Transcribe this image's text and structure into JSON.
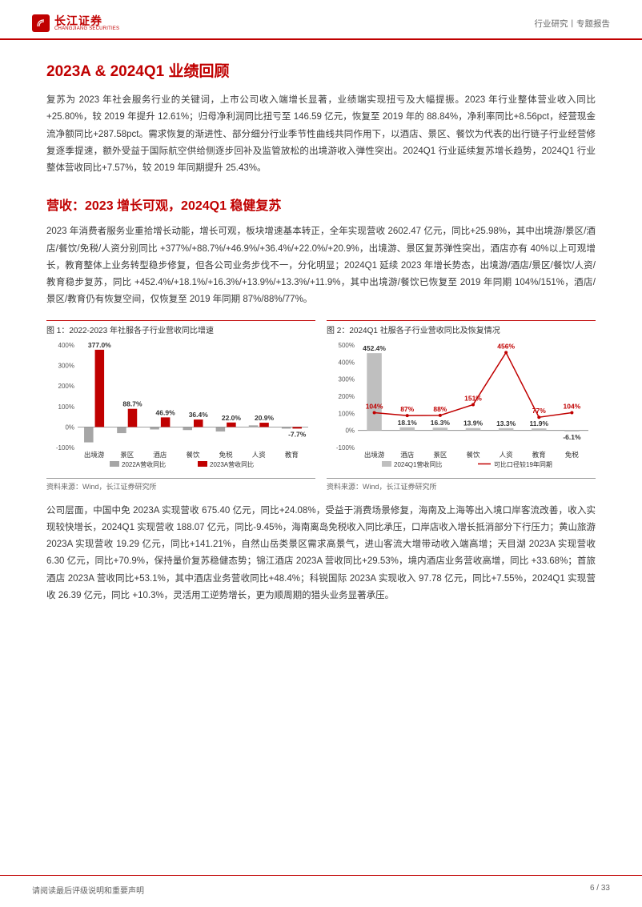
{
  "header": {
    "logo_cn": "长江证券",
    "logo_en": "CHANGJIANG SECURITIES",
    "right": "行业研究丨专题报告"
  },
  "section1_title": "2023A & 2024Q1 业绩回顾",
  "para1": "复苏为 2023 年社会服务行业的关键词，上市公司收入端增长显著，业绩端实现扭亏及大幅提振。2023 年行业整体营业收入同比+25.80%，较 2019 年提升 12.61%；归母净利润同比扭亏至 146.59 亿元，恢复至 2019 年的 88.84%，净利率同比+8.56pct，经营现金流净额同比+287.58pct。需求恢复的渐进性、部分细分行业季节性曲线共同作用下，以酒店、景区、餐饮为代表的出行链子行业经营修复逐季提速，额外受益于国际航空供给侧逐步回补及监管放松的出境游收入弹性突出。2024Q1 行业延续复苏增长趋势，2024Q1 行业整体营收同比+7.57%，较 2019 年同期提升 25.43%。",
  "section2_title": "营收：2023 增长可观，2024Q1 稳健复苏",
  "para2": "2023 年消费者服务业重拾增长动能，增长可观，板块增速基本转正，全年实现营收 2602.47 亿元，同比+25.98%，其中出境游/景区/酒店/餐饮/免税/人资分别同比 +377%/+88.7%/+46.9%/+36.4%/+22.0%/+20.9%，出境游、景区复苏弹性突出，酒店亦有 40%以上可观增长，教育整体上业务转型稳步修复，但各公司业务步伐不一，分化明显；2024Q1 延续 2023 年增长势态，出境游/酒店/景区/餐饮/人资/教育稳步复苏，同比 +452.4%/+18.1%/+16.3%/+13.9%/+13.3%/+11.9%，其中出境游/餐饮已恢复至 2019 年同期 104%/151%，酒店/景区/教育仍有恢复空间，仅恢复至 2019 年同期 87%/88%/77%。",
  "chart1": {
    "title": "图 1：2022-2023 年社服各子行业营收同比增速",
    "type": "bar",
    "categories": [
      "出境游",
      "景区",
      "酒店",
      "餐饮",
      "免税",
      "人资",
      "教育"
    ],
    "series": [
      {
        "name": "2022A营收同比",
        "color": "#a6a6a6",
        "values": [
          -75,
          -30,
          -12,
          -15,
          -22,
          8,
          -8
        ]
      },
      {
        "name": "2023A营收同比",
        "color": "#c00000",
        "values": [
          377.0,
          88.7,
          46.9,
          36.4,
          22.0,
          20.9,
          -7.7
        ]
      }
    ],
    "value_labels": [
      "377.0%",
      "88.7%",
      "46.9%",
      "36.4%",
      "22.0%",
      "20.9%",
      "-7.7%"
    ],
    "ylim": [
      -100,
      400
    ],
    "ytick_step": 100,
    "background_color": "#ffffff",
    "axis_color": "#7f7f7f",
    "label_fontsize": 8.5,
    "source": "资料来源：Wind，长江证券研究所"
  },
  "chart2": {
    "title": "图 2：2024Q1 社服各子行业营收同比及恢复情况",
    "type": "bar_line",
    "categories": [
      "出境游",
      "酒店",
      "景区",
      "餐饮",
      "人资",
      "教育",
      "免税"
    ],
    "bar_series": {
      "name": "2024Q1营收同比",
      "color": "#bfbfbf",
      "values": [
        452.4,
        18.1,
        16.3,
        13.9,
        13.3,
        11.9,
        -6.1
      ]
    },
    "line_series": {
      "name": "可比口径较19年同期",
      "color": "#c00000",
      "values": [
        104,
        87,
        88,
        151,
        456,
        77,
        104
      ]
    },
    "bar_labels": [
      "452.4%",
      "18.1%",
      "16.3%",
      "13.9%",
      "13.3%",
      "11.9%",
      "-6.1%"
    ],
    "line_labels": [
      "104%",
      "87%",
      "88%",
      "151%",
      "456%",
      "77%",
      "104%"
    ],
    "ylim": [
      -100,
      500
    ],
    "ytick_step": 100,
    "background_color": "#ffffff",
    "axis_color": "#7f7f7f",
    "label_fontsize": 8.5,
    "source": "资料来源：Wind，长江证券研究所"
  },
  "para3": "公司层面，中国中免 2023A 实现营收 675.40 亿元，同比+24.08%，受益于消费场景修复，海南及上海等出入境口岸客流改善，收入实现较快增长，2024Q1 实现营收 188.07 亿元，同比-9.45%，海南离岛免税收入同比承压，口岸店收入增长抵消部分下行压力；黄山旅游 2023A 实现营收 19.29 亿元，同比+141.21%，自然山岳类景区需求高景气，进山客流大增带动收入端高增；天目湖 2023A 实现营收 6.30 亿元，同比+70.9%，保持量价复苏稳健态势；锦江酒店 2023A 营收同比+29.53%，境内酒店业务营收高增，同比 +33.68%；首旅酒店 2023A 营收同比+53.1%，其中酒店业务营收同比+48.4%；科锐国际 2023A 实现收入 97.78 亿元，同比+7.55%，2024Q1 实现营收 26.39 亿元，同比 +10.3%，灵活用工逆势增长，更为顺周期的猎头业务显著承压。",
  "footer": {
    "left": "请阅读最后评级说明和重要声明",
    "right": "6 / 33"
  }
}
